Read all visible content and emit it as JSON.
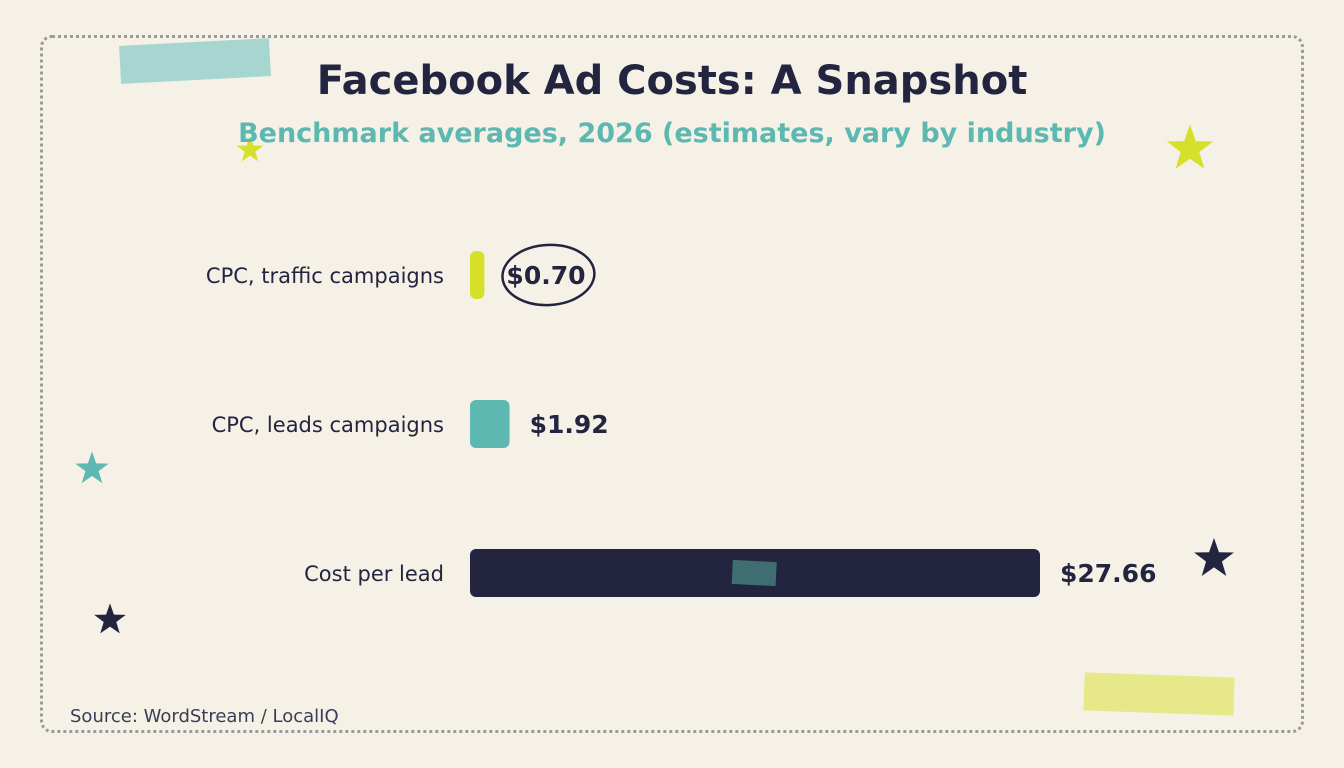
{
  "title": "Facebook Ad Costs: A Snapshot",
  "subtitle": "Benchmark averages, 2026 (estimates, vary by industry)",
  "source": "Source: WordStream / LocalIQ",
  "colors": {
    "background": "#f5f1e6",
    "ink": "#232540",
    "teal": "#5cb8b0",
    "lime": "#d6df2a",
    "dark_teal": "#3e6e72"
  },
  "chart_data": {
    "type": "bar",
    "orientation": "horizontal",
    "title": "Facebook Ad Costs: A Snapshot",
    "subtitle": "Benchmark averages, 2026 (estimates, vary by industry)",
    "categories": [
      "CPC, traffic campaigns",
      "CPC, leads campaigns",
      "Cost per lead"
    ],
    "values": [
      0.7,
      1.92,
      27.66
    ],
    "value_labels": [
      "$0.70",
      "$1.92",
      "$27.66"
    ],
    "bar_colors": [
      "#d6df2a",
      "#5cb8b0",
      "#232540"
    ],
    "highlighted": "CPC, traffic campaigns",
    "xlim": [
      0,
      27.66
    ],
    "grid": false,
    "xlabel": "",
    "ylabel": ""
  }
}
